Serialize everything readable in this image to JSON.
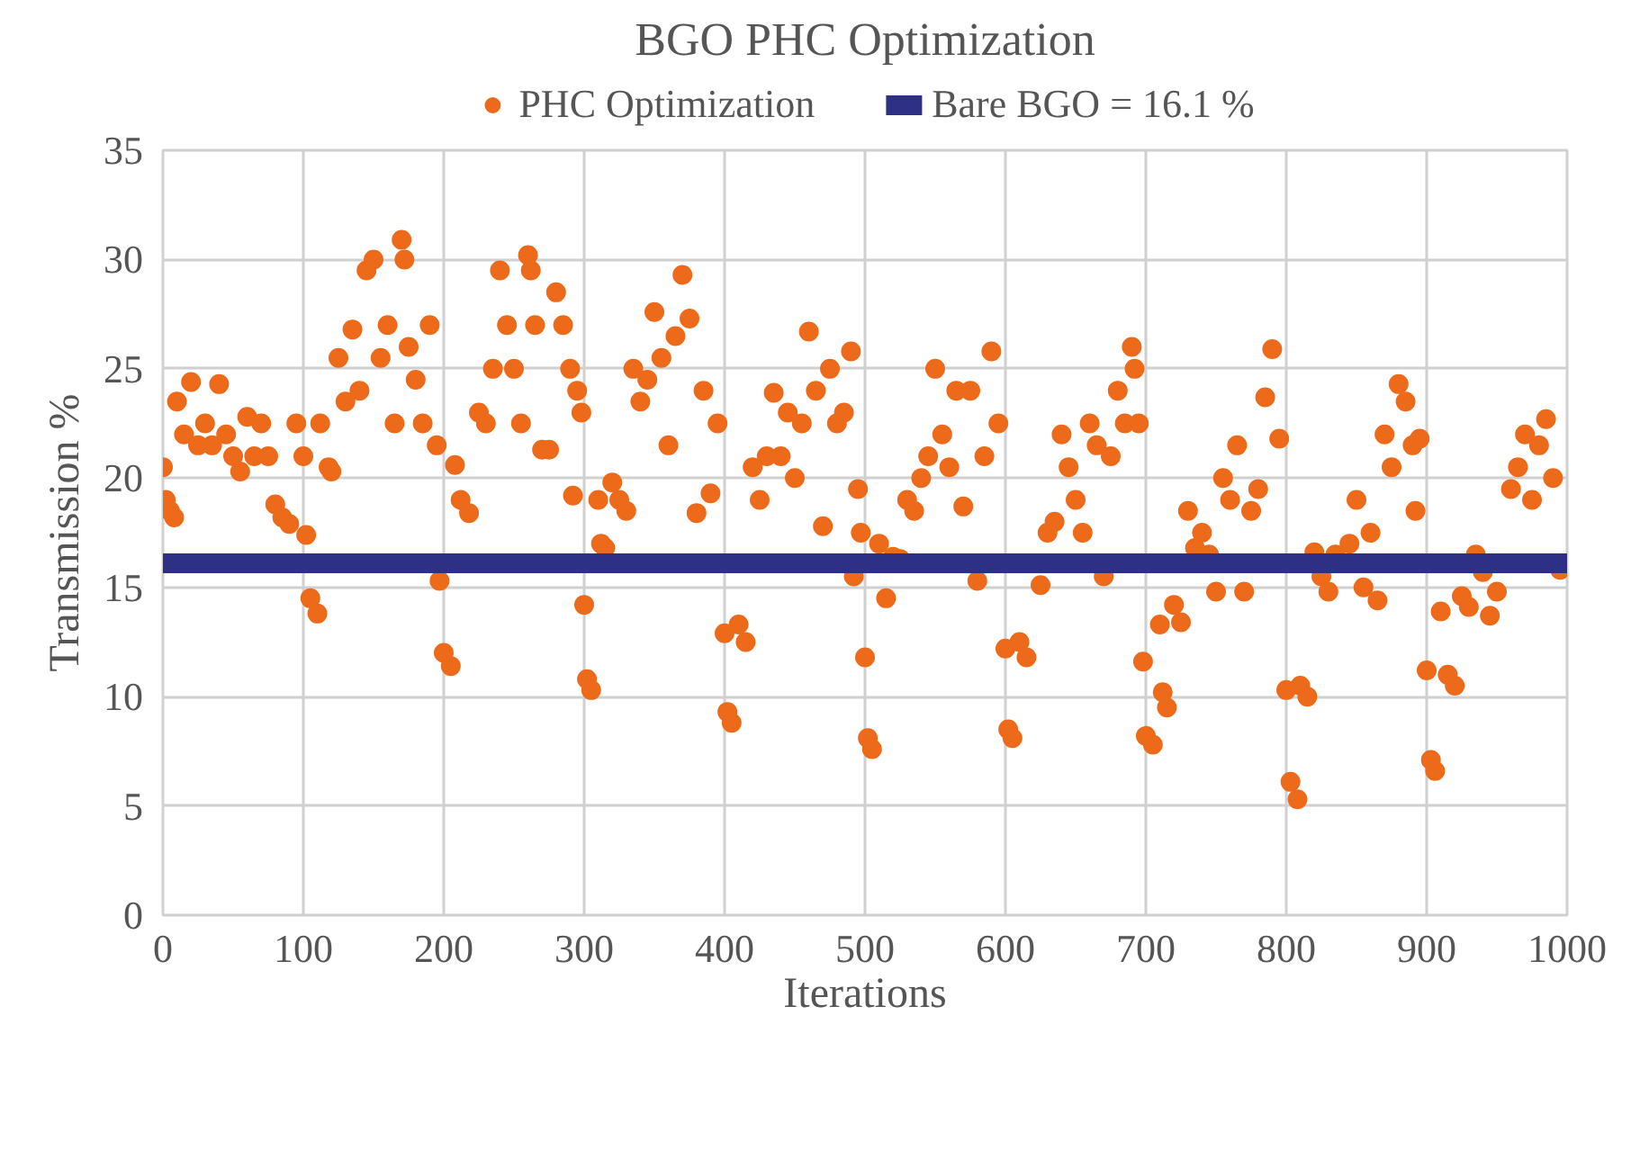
{
  "chart_data": {
    "type": "scatter",
    "title": "BGO PHC Optimization",
    "xlabel": "Iterations",
    "ylabel": "Transmission %",
    "xlim": [
      0,
      1000
    ],
    "xticks": [
      0,
      100,
      200,
      300,
      400,
      500,
      600,
      700,
      800,
      900,
      1000
    ],
    "ylim": [
      0,
      35
    ],
    "yticks": [
      0,
      5,
      10,
      15,
      20,
      25,
      30,
      35
    ],
    "grid": true,
    "legend": "top",
    "series": [
      {
        "name": "PHC Optimization",
        "color": "#ed6a1a",
        "type": "scatter",
        "marker": "circle",
        "x": [
          0,
          2,
          5,
          8,
          10,
          15,
          20,
          25,
          30,
          35,
          40,
          45,
          50,
          55,
          60,
          65,
          70,
          75,
          80,
          85,
          90,
          95,
          100,
          102,
          105,
          110,
          112,
          118,
          120,
          125,
          130,
          135,
          140,
          145,
          150,
          155,
          160,
          165,
          170,
          172,
          175,
          180,
          185,
          190,
          195,
          197,
          200,
          205,
          208,
          212,
          218,
          225,
          230,
          235,
          240,
          245,
          250,
          255,
          260,
          262,
          265,
          270,
          275,
          280,
          285,
          290,
          292,
          295,
          298,
          300,
          302,
          305,
          310,
          312,
          315,
          320,
          325,
          330,
          335,
          340,
          345,
          350,
          355,
          360,
          365,
          370,
          375,
          380,
          385,
          390,
          395,
          400,
          402,
          405,
          410,
          415,
          420,
          425,
          430,
          435,
          440,
          445,
          450,
          455,
          460,
          465,
          470,
          475,
          480,
          485,
          490,
          492,
          495,
          497,
          500,
          502,
          505,
          510,
          515,
          520,
          525,
          530,
          535,
          540,
          545,
          550,
          555,
          560,
          565,
          570,
          575,
          580,
          585,
          590,
          595,
          600,
          602,
          605,
          610,
          615,
          620,
          625,
          630,
          635,
          640,
          645,
          650,
          655,
          660,
          665,
          670,
          675,
          680,
          685,
          690,
          692,
          695,
          698,
          700,
          705,
          710,
          712,
          715,
          720,
          725,
          730,
          735,
          740,
          745,
          750,
          755,
          760,
          765,
          770,
          775,
          780,
          785,
          790,
          795,
          800,
          803,
          808,
          810,
          815,
          820,
          825,
          830,
          835,
          840,
          845,
          850,
          855,
          860,
          865,
          870,
          875,
          880,
          885,
          890,
          892,
          895,
          900,
          903,
          906,
          910,
          915,
          920,
          925,
          930,
          935,
          940,
          945,
          950,
          955,
          960,
          965,
          970,
          975,
          980,
          985,
          990,
          995
        ],
        "values": [
          20.5,
          19,
          18.5,
          18.2,
          23.5,
          22,
          24.4,
          21.5,
          22.5,
          21.5,
          24.3,
          22,
          21,
          20.3,
          22.8,
          21,
          22.5,
          21,
          18.8,
          18.2,
          17.9,
          22.5,
          21,
          17.4,
          14.5,
          13.8,
          22.5,
          20.5,
          20.3,
          25.5,
          23.5,
          26.8,
          24,
          29.5,
          30,
          25.5,
          27,
          22.5,
          30.9,
          30,
          26,
          24.5,
          22.5,
          27,
          21.5,
          15.3,
          12,
          11.4,
          20.6,
          19,
          18.4,
          23,
          22.5,
          25,
          29.5,
          27,
          25,
          22.5,
          30.2,
          29.5,
          27,
          21.3,
          21.3,
          28.5,
          27,
          25,
          19.2,
          24,
          23,
          14.2,
          10.8,
          10.3,
          19,
          17,
          16.8,
          19.8,
          19,
          18.5,
          25,
          23.5,
          24.5,
          27.6,
          25.5,
          21.5,
          26.5,
          29.3,
          27.3,
          18.4,
          24,
          19.3,
          22.5,
          12.9,
          9.3,
          8.8,
          13.3,
          12.5,
          20.5,
          19,
          21,
          23.9,
          21,
          23,
          20,
          22.5,
          26.7,
          24,
          17.8,
          25,
          22.5,
          23,
          25.8,
          15.5,
          19.5,
          17.5,
          11.8,
          8.1,
          7.6,
          17,
          14.5,
          16.4,
          16.3,
          19,
          18.5,
          20,
          21,
          25,
          22,
          20.5,
          24,
          18.7,
          24,
          15.3,
          21,
          25.8,
          22.5,
          12.2,
          8.5,
          8.1,
          12.5,
          11.8,
          null,
          15.1,
          17.5,
          18,
          22,
          20.5,
          19,
          17.5,
          22.5,
          21.5,
          15.5,
          21,
          24,
          22.5,
          26,
          25,
          22.5,
          11.6,
          8.2,
          7.8,
          13.3,
          10.2,
          9.5,
          14.2,
          13.4,
          18.5,
          16.8,
          17.5,
          16.5,
          14.8,
          20,
          19,
          21.5,
          14.8,
          18.5,
          19.5,
          23.7,
          25.9,
          21.8,
          10.3,
          6.1,
          5.3,
          10.5,
          10,
          16.6,
          15.5,
          14.8,
          16.5,
          null,
          17,
          19,
          15,
          17.5,
          14.4,
          22,
          20.5,
          24.3,
          23.5,
          21.5,
          18.5,
          21.8,
          11.2,
          7.1,
          6.6,
          13.9,
          11,
          10.5,
          14.6,
          14.1,
          16.5,
          15.7,
          13.7,
          14.8,
          null,
          19.5,
          20.5,
          22,
          19,
          21.5,
          22.7,
          20,
          15.8
        ]
      },
      {
        "name": "Bare BGO = 16.1 %",
        "color": "#2e3085",
        "type": "line",
        "x": [
          0,
          1000
        ],
        "values": [
          16.1,
          16.1
        ]
      }
    ]
  }
}
